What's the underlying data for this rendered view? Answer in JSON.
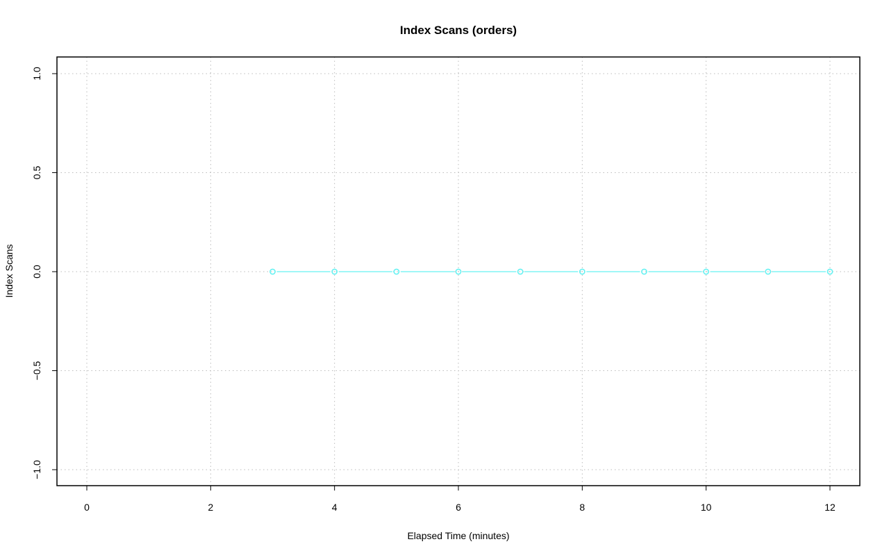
{
  "chart_data": {
    "type": "line",
    "title": "Index Scans (orders)",
    "xlabel": "Elapsed Time (minutes)",
    "ylabel": "Index Scans",
    "xlim": [
      -0.5,
      12.5
    ],
    "ylim": [
      -1.08,
      1.08
    ],
    "xticks": [
      0,
      2,
      4,
      6,
      8,
      10,
      12
    ],
    "yticks": [
      -1.0,
      -0.5,
      0.0,
      0.5,
      1.0
    ],
    "ytick_labels": [
      "−1.0",
      "−0.5",
      "0.0",
      "0.5",
      "1.0"
    ],
    "grid": true,
    "series": [
      {
        "color": "#66f2f2",
        "marker": "open-circle",
        "x": [
          3,
          4,
          5,
          6,
          7,
          8,
          9,
          10,
          11,
          12
        ],
        "y": [
          0,
          0,
          0,
          0,
          0,
          0,
          0,
          0,
          0,
          0
        ]
      }
    ]
  }
}
